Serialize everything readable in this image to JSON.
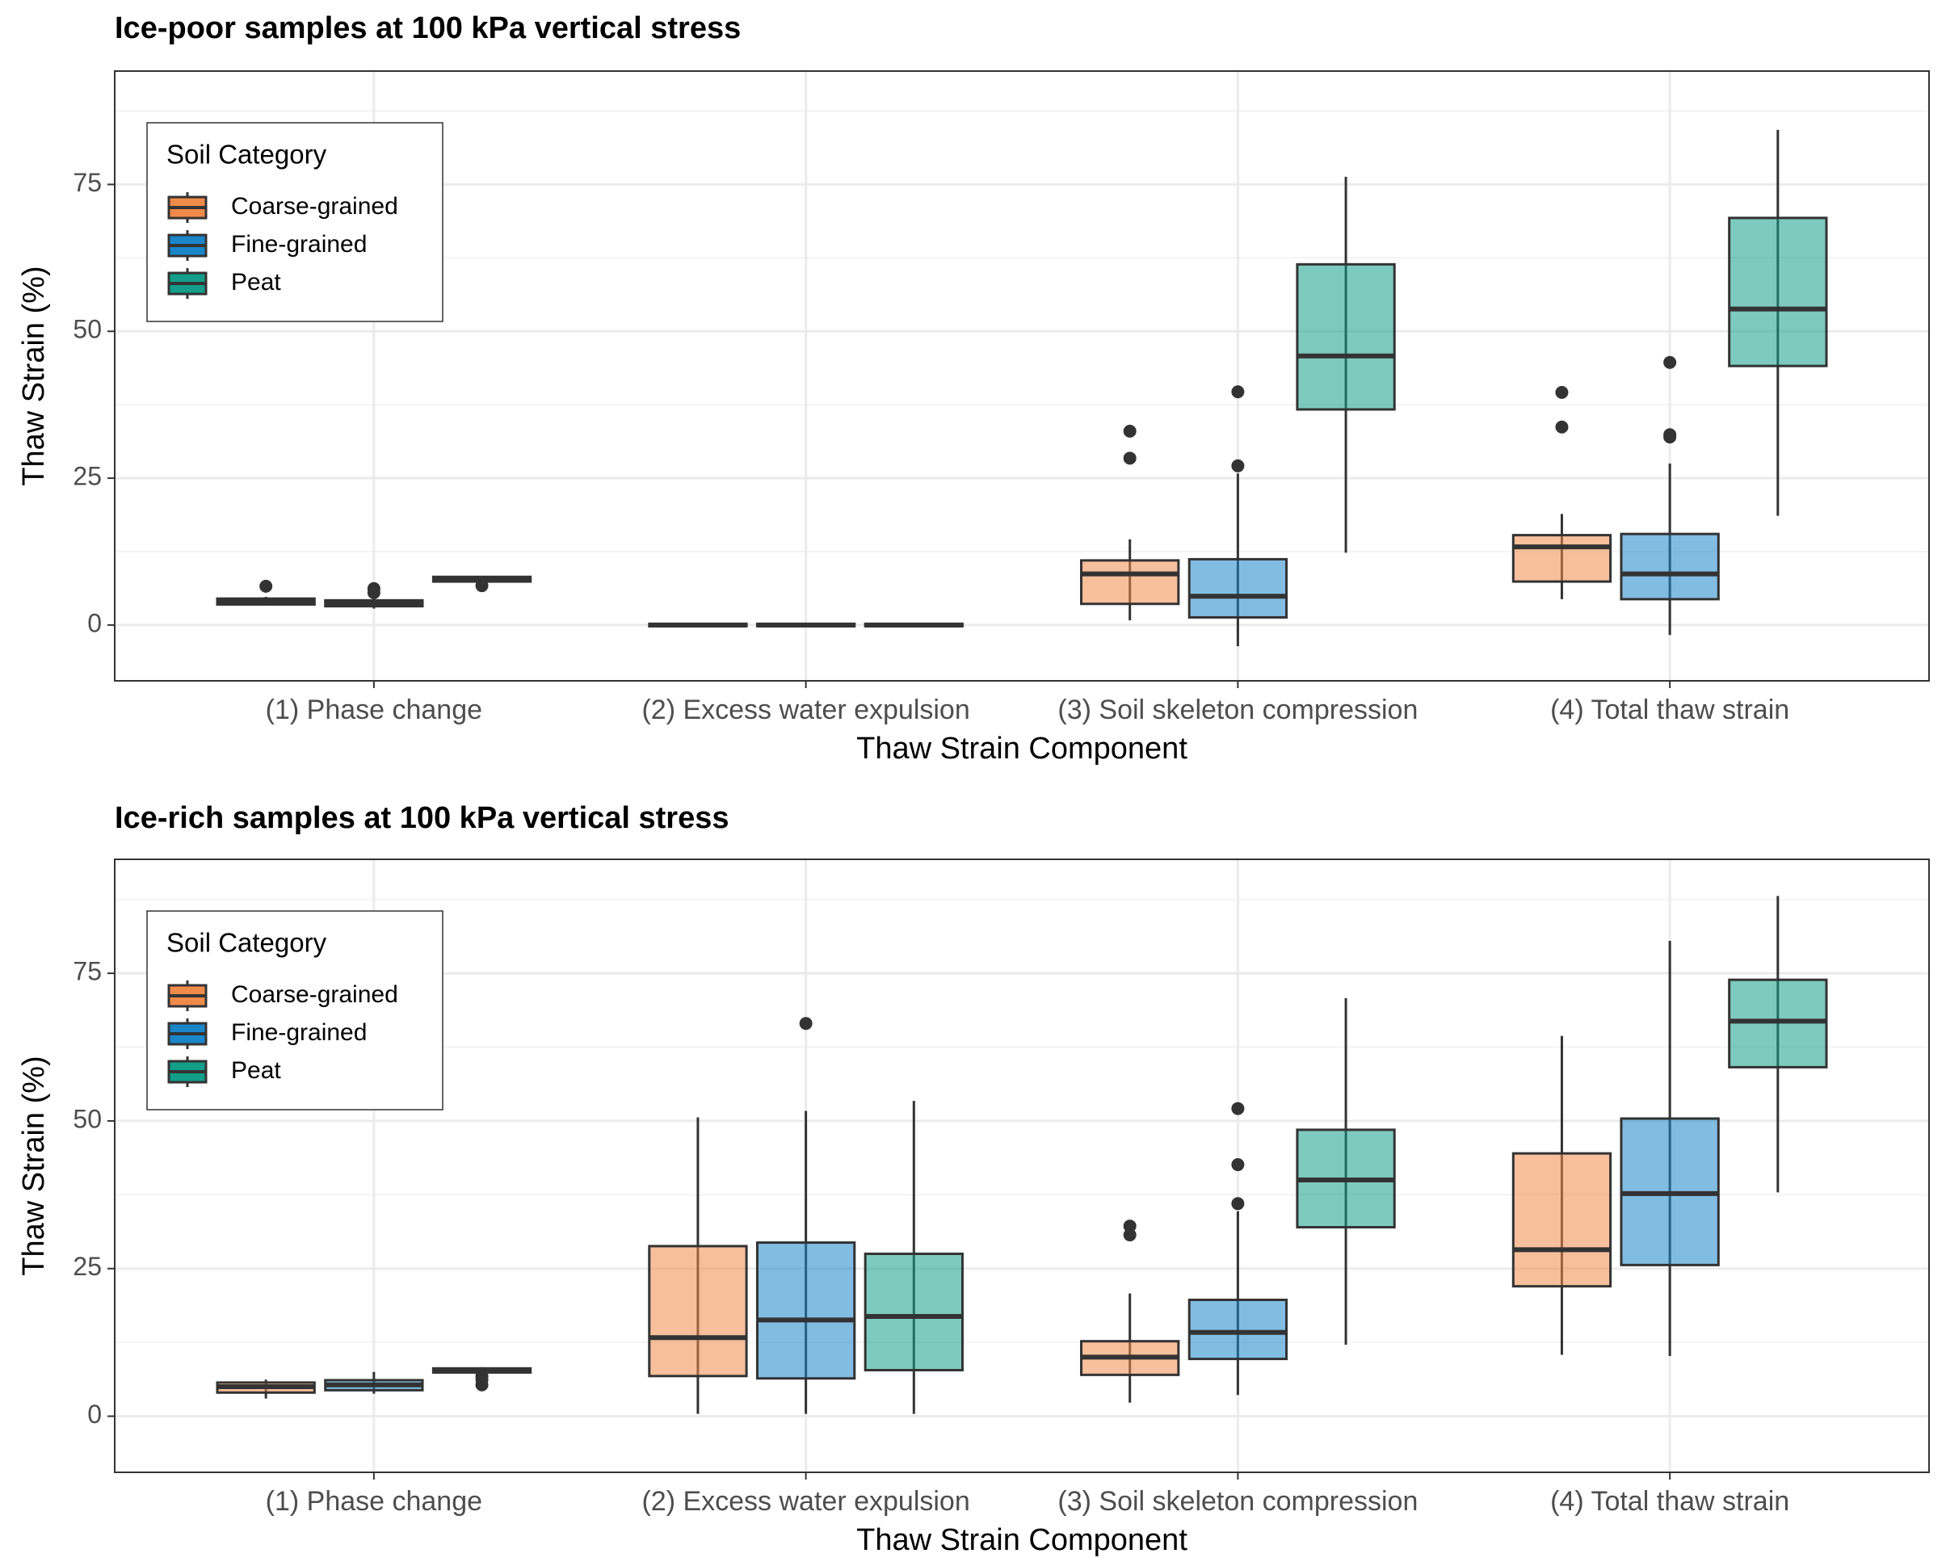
{
  "chart_data": [
    {
      "type": "box",
      "title": "Ice-poor samples at 100 kPa vertical stress",
      "x_label": "Thaw Strain Component",
      "y_label": "Thaw Strain (%)",
      "categories": [
        "(1) Phase change",
        "(2) Excess water expulsion",
        "(3) Soil skeleton compression",
        "(4) Total thaw strain"
      ],
      "ylim": [
        -9.5,
        94.3
      ],
      "yticks": [
        0,
        25,
        50,
        75
      ],
      "minor_yticks": [
        12.5,
        37.5,
        62.5,
        87.5
      ],
      "grid": true,
      "legend_title": "Soil Category",
      "legend_position": "top-left",
      "series": [
        {
          "name": "Coarse-grained",
          "color": "#f08a4b",
          "whisker_low": [
            3.3,
            -0.3,
            0.8,
            4.4
          ],
          "q1": [
            3.5,
            -0.2,
            3.6,
            7.4
          ],
          "median": [
            4.0,
            0,
            8.7,
            13.3
          ],
          "q3": [
            4.5,
            0.2,
            11.0,
            15.3
          ],
          "whisker_high": [
            4.8,
            0.3,
            14.6,
            18.9
          ],
          "outliers": [
            [
              6.6
            ],
            [],
            [
              33.0,
              28.4
            ],
            [
              39.6,
              33.7
            ]
          ]
        },
        {
          "name": "Fine-grained",
          "color": "#1a86c8",
          "whisker_low": [
            2.8,
            -0.3,
            -3.6,
            -1.7
          ],
          "q1": [
            3.2,
            -0.2,
            1.3,
            4.4
          ],
          "median": [
            3.7,
            0,
            4.9,
            8.7
          ],
          "q3": [
            4.2,
            0.2,
            11.2,
            15.5
          ],
          "whisker_high": [
            5.0,
            0.3,
            25.8,
            27.5
          ],
          "outliers": [
            [
              5.5,
              6.2
            ],
            [],
            [
              27.1,
              39.7
            ],
            [
              44.7,
              32.4,
              32.0
            ]
          ]
        },
        {
          "name": "Peat",
          "color": "#129e88",
          "whisker_low": [
            7.4,
            -0.3,
            12.3,
            18.6
          ],
          "q1": [
            7.4,
            -0.2,
            36.7,
            44.1
          ],
          "median": [
            7.8,
            0,
            45.8,
            53.8
          ],
          "q3": [
            8.2,
            0.2,
            61.4,
            69.3
          ],
          "whisker_high": [
            8.2,
            0.3,
            76.3,
            84.3
          ],
          "outliers": [
            [
              6.7
            ],
            [],
            [],
            []
          ]
        }
      ]
    },
    {
      "type": "box",
      "title": "Ice-rich samples at 100 kPa vertical stress",
      "x_label": "Thaw Strain Component",
      "y_label": "Thaw Strain (%)",
      "categories": [
        "(1) Phase change",
        "(2) Excess water expulsion",
        "(3) Soil skeleton compression",
        "(4) Total thaw strain"
      ],
      "ylim": [
        -9.5,
        94.3
      ],
      "yticks": [
        0,
        25,
        50,
        75
      ],
      "minor_yticks": [
        12.5,
        37.5,
        62.5,
        87.5
      ],
      "grid": true,
      "legend_title": "Soil Category",
      "legend_position": "top-left",
      "series": [
        {
          "name": "Coarse-grained",
          "color": "#f08a4b",
          "whisker_low": [
            3.0,
            0.4,
            2.3,
            10.4
          ],
          "q1": [
            4.0,
            6.8,
            7.0,
            22.0
          ],
          "median": [
            5.0,
            13.3,
            10.0,
            28.2
          ],
          "q3": [
            5.7,
            28.8,
            12.7,
            44.5
          ],
          "whisker_high": [
            6.2,
            50.6,
            20.8,
            64.4
          ],
          "outliers": [
            [],
            [],
            [
              32.2,
              30.7
            ],
            []
          ]
        },
        {
          "name": "Fine-grained",
          "color": "#1a86c8",
          "whisker_low": [
            3.8,
            0.4,
            3.6,
            10.2
          ],
          "q1": [
            4.4,
            6.4,
            9.7,
            25.6
          ],
          "median": [
            5.3,
            16.3,
            14.2,
            37.7
          ],
          "q3": [
            6.1,
            29.4,
            19.7,
            50.4
          ],
          "whisker_high": [
            7.5,
            51.7,
            34.7,
            80.5
          ],
          "outliers": [
            [],
            [
              66.5
            ],
            [
              36.0,
              42.6,
              52.1
            ],
            []
          ]
        },
        {
          "name": "Peat",
          "color": "#129e88",
          "whisker_low": [
            7.4,
            0.4,
            12.1,
            37.9
          ],
          "q1": [
            7.4,
            7.8,
            32.0,
            59.1
          ],
          "median": [
            7.8,
            16.9,
            40.0,
            66.9
          ],
          "q3": [
            8.1,
            27.5,
            48.5,
            73.9
          ],
          "whisker_high": [
            8.3,
            53.4,
            70.8,
            88.1
          ],
          "outliers": [
            [
              5.3,
              6.2,
              6.8
            ],
            [],
            [],
            []
          ]
        }
      ]
    }
  ]
}
